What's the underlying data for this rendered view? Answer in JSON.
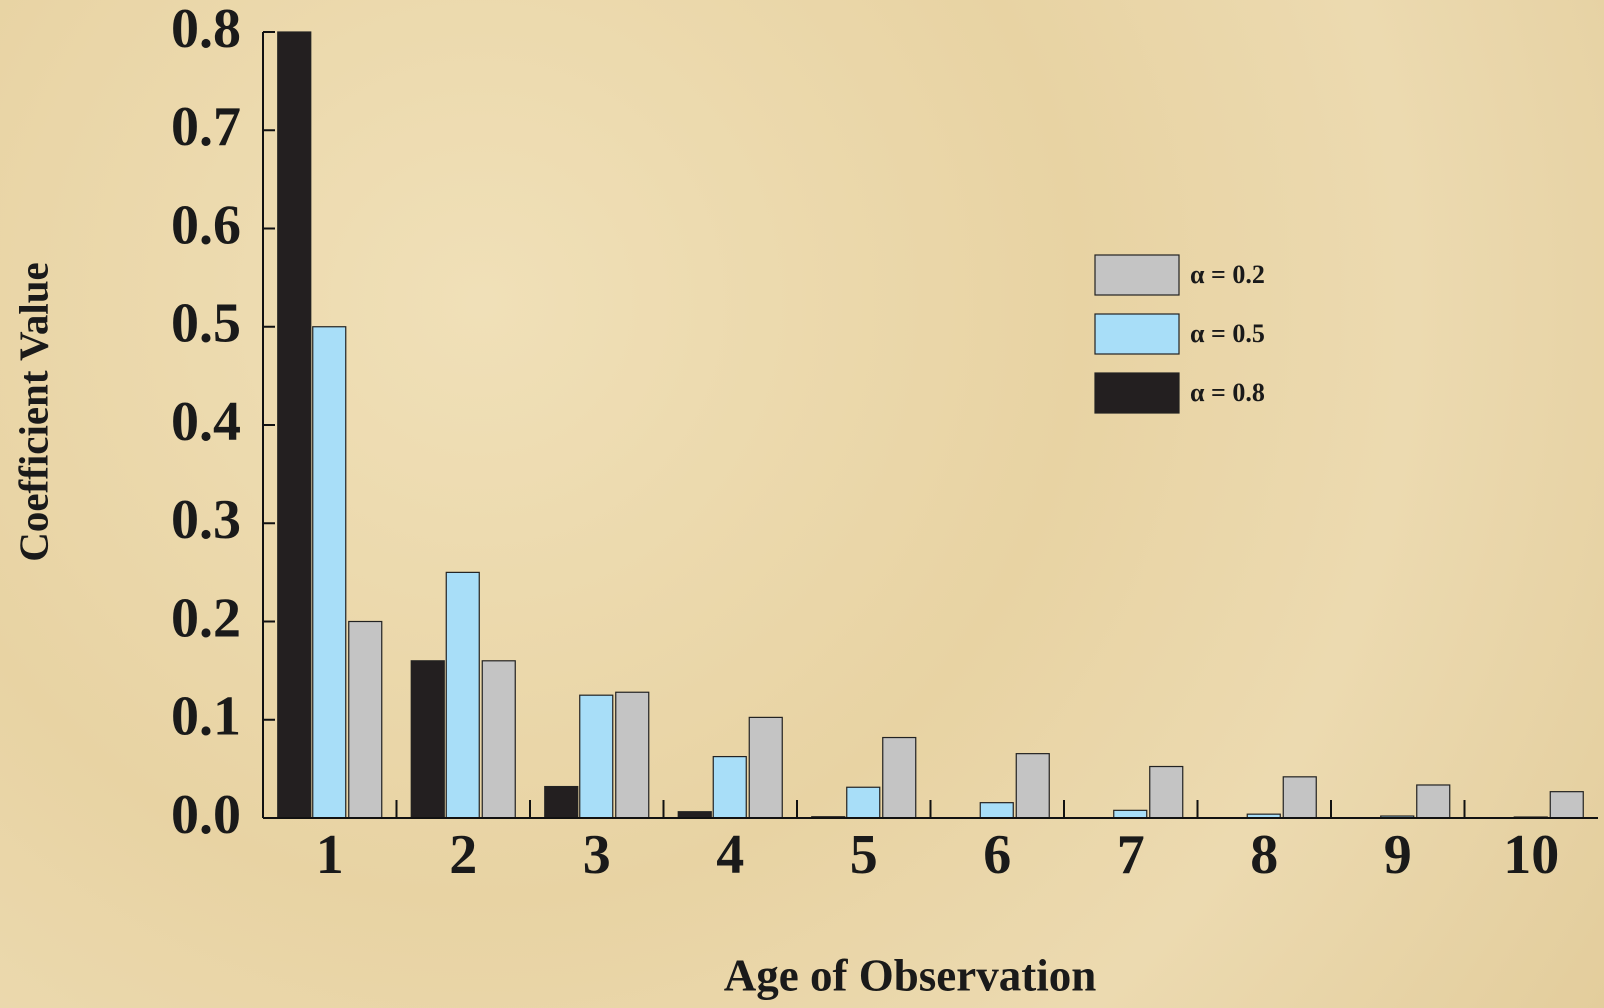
{
  "chart_data": {
    "type": "bar",
    "y_label": "Coefficient Value",
    "x_label": "Age of Observation",
    "categories": [
      "1",
      "2",
      "3",
      "4",
      "5",
      "6",
      "7",
      "8",
      "9",
      "10"
    ],
    "series": [
      {
        "name": "α = 0.2",
        "color": "#c4c4c4",
        "values": [
          0.2,
          0.16,
          0.128,
          0.1024,
          0.0819,
          0.0655,
          0.0524,
          0.0419,
          0.0336,
          0.0268
        ]
      },
      {
        "name": "α = 0.5",
        "color": "#a8def8",
        "values": [
          0.5,
          0.25,
          0.125,
          0.0625,
          0.0313,
          0.0156,
          0.0078,
          0.0039,
          0.002,
          0.001
        ]
      },
      {
        "name": "α = 0.8",
        "color": "#231f20",
        "values": [
          0.8,
          0.16,
          0.032,
          0.0064,
          0.0013,
          0.0003,
          0.0001,
          0,
          0,
          0
        ]
      }
    ],
    "ylim": [
      0,
      0.8
    ],
    "yticks": [
      {
        "value": 0,
        "label": "0.0"
      },
      0.1,
      0.2,
      0.3,
      0.4,
      0.5,
      0.6,
      0.7,
      0.8
    ],
    "legend": "upper right"
  }
}
